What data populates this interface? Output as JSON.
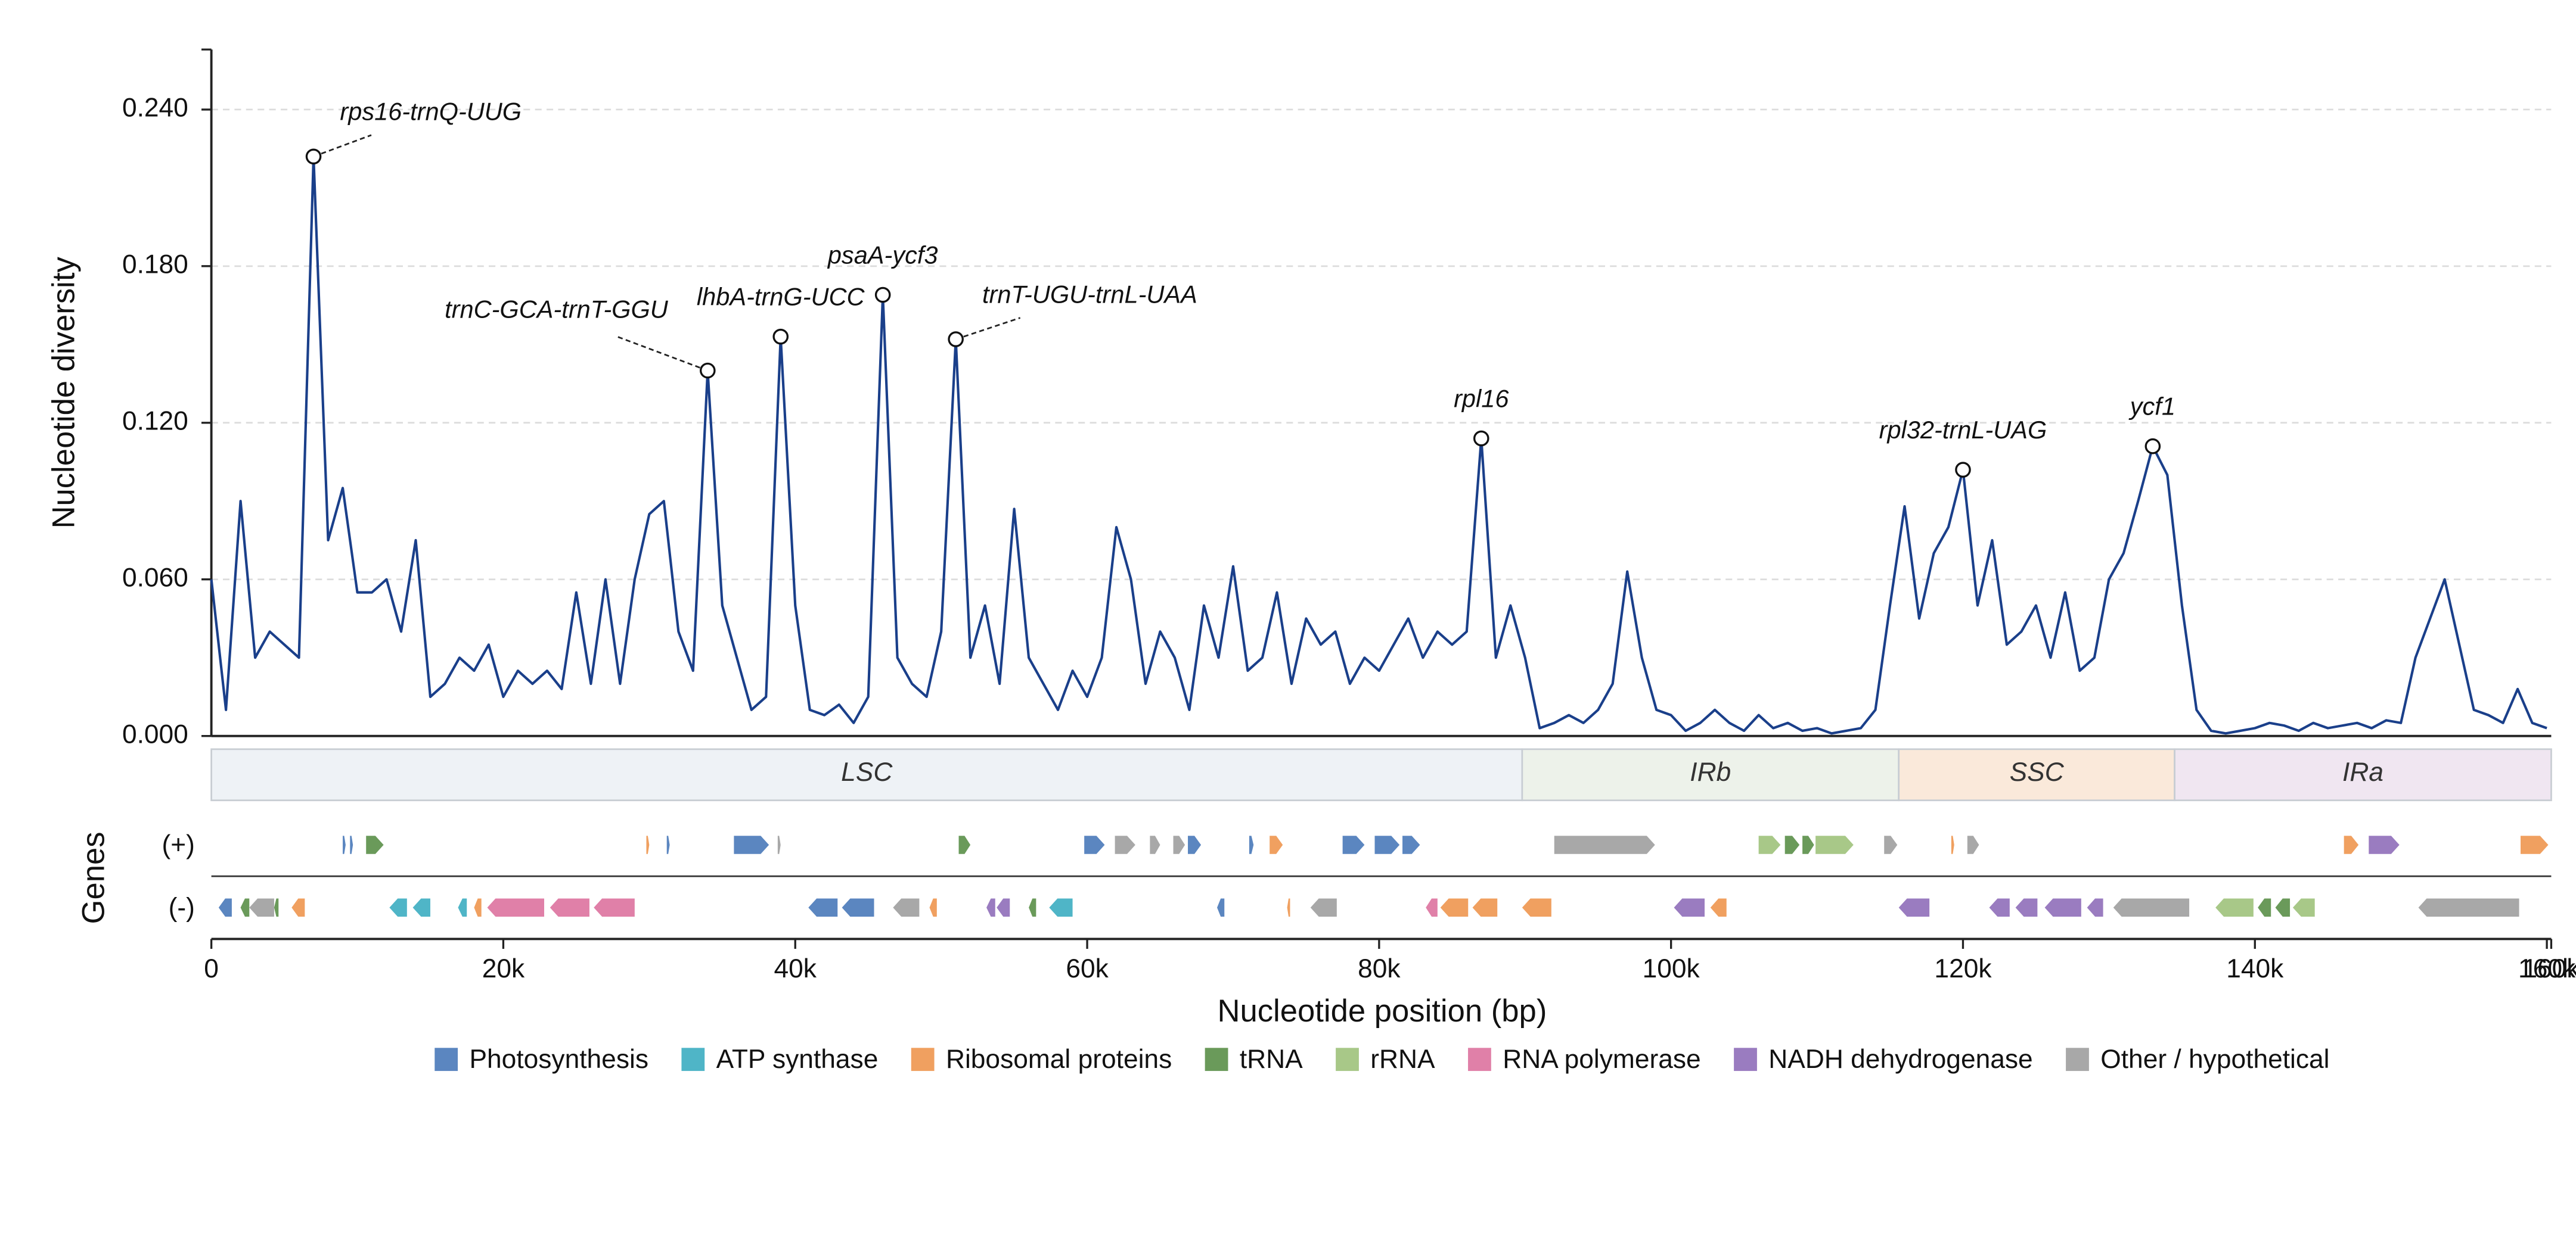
{
  "chart_data": {
    "type": "line",
    "y_label": "Nucleotide diversity",
    "x_label": "Nucleotide position (bp)",
    "xlim": [
      0,
      160300
    ],
    "xticks": [
      0,
      {
        "value": 20000,
        "label": "20k"
      },
      {
        "value": 40000,
        "label": "40k"
      },
      {
        "value": 60000,
        "label": "60k"
      },
      {
        "value": 80000,
        "label": "80k"
      },
      {
        "value": 100000,
        "label": "100k"
      },
      {
        "value": 120000,
        "label": "120k"
      },
      {
        "value": 140000,
        "label": "140k"
      },
      {
        "value": 160000,
        "label": "160k"
      },
      {
        "value": 160300,
        "label": "160k"
      }
    ],
    "ylim": [
      0,
      0.263
    ],
    "yticks": [
      {
        "value": 0,
        "label": "0.000"
      },
      {
        "value": 0.06,
        "label": "0.060"
      },
      {
        "value": 0.12,
        "label": "0.120"
      },
      {
        "value": 0.18,
        "label": "0.180"
      },
      {
        "value": 0.24,
        "label": "0.240"
      }
    ],
    "grid": true,
    "x": [
      0,
      1000,
      2000,
      3000,
      4000,
      5000,
      6000,
      7000,
      8000,
      9000,
      10000,
      11000,
      12000,
      13000,
      14000,
      15000,
      16000,
      17000,
      18000,
      19000,
      20000,
      21000,
      22000,
      23000,
      24000,
      25000,
      26000,
      27000,
      28000,
      29000,
      30000,
      31000,
      32000,
      33000,
      34000,
      35000,
      36000,
      37000,
      38000,
      39000,
      40000,
      41000,
      42000,
      43000,
      44000,
      45000,
      46000,
      47000,
      48000,
      49000,
      50000,
      51000,
      52000,
      53000,
      54000,
      55000,
      56000,
      57000,
      58000,
      59000,
      60000,
      61000,
      62000,
      63000,
      64000,
      65000,
      66000,
      67000,
      68000,
      69000,
      70000,
      71000,
      72000,
      73000,
      74000,
      75000,
      76000,
      77000,
      78000,
      79000,
      80000,
      81000,
      82000,
      83000,
      84000,
      85000,
      86000,
      87000,
      88000,
      89000,
      90000,
      91000,
      92000,
      93000,
      94000,
      95000,
      96000,
      97000,
      98000,
      99000,
      100000,
      101000,
      102000,
      103000,
      104000,
      105000,
      106000,
      107000,
      108000,
      109000,
      110000,
      111000,
      112000,
      113000,
      114000,
      115000,
      116000,
      117000,
      118000,
      119000,
      120000,
      121000,
      122000,
      123000,
      124000,
      125000,
      126000,
      127000,
      128000,
      129000,
      130000,
      131000,
      132000,
      133000,
      134000,
      135000,
      136000,
      137000,
      138000,
      139000,
      140000,
      141000,
      142000,
      143000,
      144000,
      145000,
      146000,
      147000,
      148000,
      149000,
      150000,
      151000,
      152000,
      153000,
      154000,
      155000,
      156000,
      157000,
      158000,
      159000,
      160000
    ],
    "series": [
      {
        "color": "#1a3f8a",
        "values": [
          0.06,
          0.01,
          0.09,
          0.03,
          0.04,
          0.035,
          0.03,
          0.222,
          0.075,
          0.095,
          0.055,
          0.055,
          0.06,
          0.04,
          0.075,
          0.015,
          0.02,
          0.03,
          0.025,
          0.035,
          0.015,
          0.025,
          0.02,
          0.025,
          0.018,
          0.055,
          0.02,
          0.06,
          0.02,
          0.06,
          0.085,
          0.09,
          0.04,
          0.025,
          0.14,
          0.05,
          0.03,
          0.01,
          0.015,
          0.153,
          0.05,
          0.01,
          0.008,
          0.012,
          0.005,
          0.015,
          0.169,
          0.03,
          0.02,
          0.015,
          0.04,
          0.152,
          0.03,
          0.05,
          0.02,
          0.087,
          0.03,
          0.02,
          0.01,
          0.025,
          0.015,
          0.03,
          0.08,
          0.06,
          0.02,
          0.04,
          0.03,
          0.01,
          0.05,
          0.03,
          0.065,
          0.025,
          0.03,
          0.055,
          0.02,
          0.045,
          0.035,
          0.04,
          0.02,
          0.03,
          0.025,
          0.035,
          0.045,
          0.03,
          0.04,
          0.035,
          0.04,
          0.114,
          0.03,
          0.05,
          0.03,
          0.003,
          0.005,
          0.008,
          0.005,
          0.01,
          0.02,
          0.063,
          0.03,
          0.01,
          0.008,
          0.002,
          0.005,
          0.01,
          0.005,
          0.002,
          0.008,
          0.003,
          0.005,
          0.002,
          0.003,
          0.001,
          0.002,
          0.003,
          0.01,
          0.05,
          0.088,
          0.045,
          0.07,
          0.08,
          0.102,
          0.05,
          0.075,
          0.035,
          0.04,
          0.05,
          0.03,
          0.055,
          0.025,
          0.03,
          0.06,
          0.07,
          0.09,
          0.111,
          0.1,
          0.05,
          0.01,
          0.002,
          0.001,
          0.002,
          0.003,
          0.005,
          0.004,
          0.002,
          0.005,
          0.003,
          0.004,
          0.005,
          0.003,
          0.006,
          0.005,
          0.03,
          0.045,
          0.06,
          0.035,
          0.01,
          0.008,
          0.005,
          0.018,
          0.005,
          0.003
        ]
      }
    ],
    "annotations": [
      {
        "text": "rps16-trnQ-UUG",
        "x": 7000,
        "y": 0.222
      },
      {
        "text": "trnC-GCA-trnT-GGU",
        "x": 34000,
        "y": 0.14
      },
      {
        "text": "lhbA-trnG-UCC",
        "x": 39000,
        "y": 0.153
      },
      {
        "text": "psaA-ycf3",
        "x": 46000,
        "y": 0.169
      },
      {
        "text": "trnT-UGU-trnL-UAA",
        "x": 51000,
        "y": 0.152
      },
      {
        "text": "rpl16",
        "x": 87000,
        "y": 0.114
      },
      {
        "text": "rpl32-trnL-UAG",
        "x": 120000,
        "y": 0.102
      },
      {
        "text": "ycf1",
        "x": 133000,
        "y": 0.111
      }
    ],
    "regions": [
      {
        "label": "LSC",
        "start": 0,
        "end": 89800,
        "color": "#eef2f6"
      },
      {
        "label": "IRb",
        "start": 89800,
        "end": 115600,
        "color": "#edf2ea"
      },
      {
        "label": "SSC",
        "start": 115600,
        "end": 134500,
        "color": "#fae9da"
      },
      {
        "label": "IRa",
        "start": 134500,
        "end": 160300,
        "color": "#f0e6f1"
      }
    ],
    "genes": {
      "label": "Genes",
      "strand_labels": [
        "(+)",
        "(-)"
      ],
      "categories": [
        {
          "name": "Photosynthesis",
          "color": "#5b86c0"
        },
        {
          "name": "ATP synthase",
          "color": "#4fb5c7"
        },
        {
          "name": "Ribosomal proteins",
          "color": "#f0a060"
        },
        {
          "name": "tRNA",
          "color": "#6a9a5a"
        },
        {
          "name": "rRNA",
          "color": "#a8c888"
        },
        {
          "name": "RNA polymerase",
          "color": "#e080a8"
        },
        {
          "name": "NADH dehydrogenase",
          "color": "#9a7cc0"
        },
        {
          "name": "Other / hypothetical",
          "color": "#a8a8a8"
        }
      ],
      "features": [
        {
          "start": 9000,
          "end": 9200,
          "strand": "+",
          "category": 0
        },
        {
          "start": 9500,
          "end": 9700,
          "strand": "+",
          "category": 0
        },
        {
          "start": 10600,
          "end": 11800,
          "strand": "+",
          "category": 3
        },
        {
          "start": 29800,
          "end": 30000,
          "strand": "+",
          "category": 2
        },
        {
          "start": 31200,
          "end": 31400,
          "strand": "+",
          "category": 0
        },
        {
          "start": 35800,
          "end": 38200,
          "strand": "+",
          "category": 0
        },
        {
          "start": 38800,
          "end": 39000,
          "strand": "+",
          "category": 7
        },
        {
          "start": 51200,
          "end": 52000,
          "strand": "+",
          "category": 3
        },
        {
          "start": 59800,
          "end": 61200,
          "strand": "+",
          "category": 0
        },
        {
          "start": 61900,
          "end": 63300,
          "strand": "+",
          "category": 7
        },
        {
          "start": 64300,
          "end": 65000,
          "strand": "+",
          "category": 7
        },
        {
          "start": 65900,
          "end": 66700,
          "strand": "+",
          "category": 7
        },
        {
          "start": 66900,
          "end": 67800,
          "strand": "+",
          "category": 0
        },
        {
          "start": 71100,
          "end": 71400,
          "strand": "+",
          "category": 0
        },
        {
          "start": 72500,
          "end": 73400,
          "strand": "+",
          "category": 2
        },
        {
          "start": 77500,
          "end": 79000,
          "strand": "+",
          "category": 0
        },
        {
          "start": 79700,
          "end": 81400,
          "strand": "+",
          "category": 0
        },
        {
          "start": 81600,
          "end": 82800,
          "strand": "+",
          "category": 0
        },
        {
          "start": 92000,
          "end": 98900,
          "strand": "+",
          "category": 7
        },
        {
          "start": 106000,
          "end": 107500,
          "strand": "+",
          "category": 4
        },
        {
          "start": 107800,
          "end": 108800,
          "strand": "+",
          "category": 3
        },
        {
          "start": 109000,
          "end": 109800,
          "strand": "+",
          "category": 3
        },
        {
          "start": 109900,
          "end": 112500,
          "strand": "+",
          "category": 4
        },
        {
          "start": 114600,
          "end": 115500,
          "strand": "+",
          "category": 7
        },
        {
          "start": 119200,
          "end": 119400,
          "strand": "+",
          "category": 2
        },
        {
          "start": 120300,
          "end": 121100,
          "strand": "+",
          "category": 7
        },
        {
          "start": 146100,
          "end": 147100,
          "strand": "+",
          "category": 2
        },
        {
          "start": 147800,
          "end": 149900,
          "strand": "+",
          "category": 6
        },
        {
          "start": 158200,
          "end": 160100,
          "strand": "+",
          "category": 2
        },
        {
          "start": 500,
          "end": 1400,
          "strand": "-",
          "category": 0
        },
        {
          "start": 2000,
          "end": 2600,
          "strand": "-",
          "category": 3
        },
        {
          "start": 2600,
          "end": 4300,
          "strand": "-",
          "category": 7
        },
        {
          "start": 4300,
          "end": 4600,
          "strand": "-",
          "category": 3
        },
        {
          "start": 5500,
          "end": 6400,
          "strand": "-",
          "category": 2
        },
        {
          "start": 12200,
          "end": 13400,
          "strand": "-",
          "category": 1
        },
        {
          "start": 13800,
          "end": 15000,
          "strand": "-",
          "category": 1
        },
        {
          "start": 16900,
          "end": 17500,
          "strand": "-",
          "category": 1
        },
        {
          "start": 18000,
          "end": 18500,
          "strand": "-",
          "category": 2
        },
        {
          "start": 18900,
          "end": 22800,
          "strand": "-",
          "category": 5
        },
        {
          "start": 23200,
          "end": 25900,
          "strand": "-",
          "category": 5
        },
        {
          "start": 26200,
          "end": 29000,
          "strand": "-",
          "category": 5
        },
        {
          "start": 40900,
          "end": 42900,
          "strand": "-",
          "category": 0
        },
        {
          "start": 43200,
          "end": 45400,
          "strand": "-",
          "category": 0
        },
        {
          "start": 46700,
          "end": 48500,
          "strand": "-",
          "category": 7
        },
        {
          "start": 49200,
          "end": 49700,
          "strand": "-",
          "category": 2
        },
        {
          "start": 53100,
          "end": 53700,
          "strand": "-",
          "category": 6
        },
        {
          "start": 53800,
          "end": 54700,
          "strand": "-",
          "category": 6
        },
        {
          "start": 56000,
          "end": 56500,
          "strand": "-",
          "category": 3
        },
        {
          "start": 57400,
          "end": 59000,
          "strand": "-",
          "category": 1
        },
        {
          "start": 68900,
          "end": 69400,
          "strand": "-",
          "category": 0
        },
        {
          "start": 73700,
          "end": 73900,
          "strand": "-",
          "category": 2
        },
        {
          "start": 75300,
          "end": 77100,
          "strand": "-",
          "category": 7
        },
        {
          "start": 83200,
          "end": 84000,
          "strand": "-",
          "category": 5
        },
        {
          "start": 84200,
          "end": 86100,
          "strand": "-",
          "category": 2
        },
        {
          "start": 86400,
          "end": 88100,
          "strand": "-",
          "category": 2
        },
        {
          "start": 89800,
          "end": 91800,
          "strand": "-",
          "category": 2
        },
        {
          "start": 100200,
          "end": 102300,
          "strand": "-",
          "category": 6
        },
        {
          "start": 102700,
          "end": 103800,
          "strand": "-",
          "category": 2
        },
        {
          "start": 115600,
          "end": 117700,
          "strand": "-",
          "category": 6
        },
        {
          "start": 121800,
          "end": 123200,
          "strand": "-",
          "category": 6
        },
        {
          "start": 123600,
          "end": 125100,
          "strand": "-",
          "category": 6
        },
        {
          "start": 125600,
          "end": 128100,
          "strand": "-",
          "category": 6
        },
        {
          "start": 128500,
          "end": 129600,
          "strand": "-",
          "category": 6
        },
        {
          "start": 130300,
          "end": 135500,
          "strand": "-",
          "category": 7
        },
        {
          "start": 137300,
          "end": 139900,
          "strand": "-",
          "category": 4
        },
        {
          "start": 140200,
          "end": 141100,
          "strand": "-",
          "category": 3
        },
        {
          "start": 141400,
          "end": 142400,
          "strand": "-",
          "category": 3
        },
        {
          "start": 142600,
          "end": 144100,
          "strand": "-",
          "category": 4
        },
        {
          "start": 151200,
          "end": 158100,
          "strand": "-",
          "category": 7
        }
      ]
    }
  }
}
